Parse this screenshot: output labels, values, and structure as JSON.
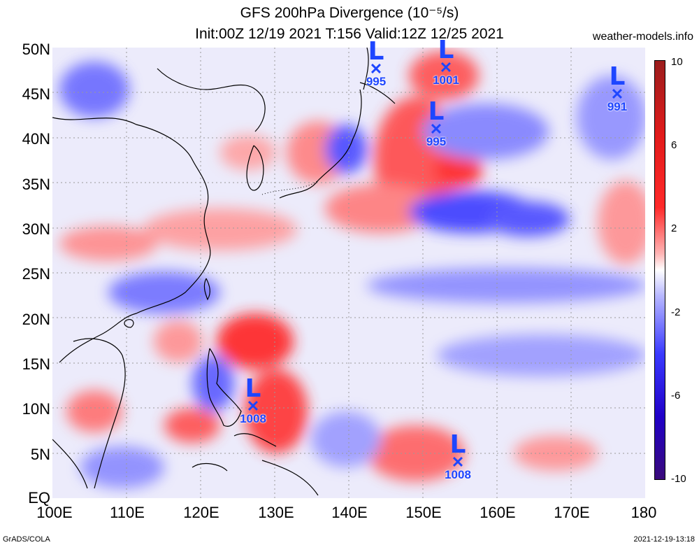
{
  "title": {
    "line1": "GFS 200hPa Divergence (10⁻⁵/s)",
    "line2": "Init:00Z 12/19 2021 T:156 Valid:12Z 12/25 2021"
  },
  "site": "weather-models.info",
  "footer": {
    "left": "GrADS/COLA",
    "right": "2021-12-19-13:18"
  },
  "axes": {
    "y_labels": [
      "50N",
      "45N",
      "40N",
      "35N",
      "30N",
      "25N",
      "20N",
      "15N",
      "10N",
      "5N",
      "EQ"
    ],
    "x_labels": [
      "100E",
      "110E",
      "120E",
      "130E",
      "140E",
      "150E",
      "160E",
      "170E",
      "180"
    ]
  },
  "colorbar": {
    "ticks": [
      "10",
      "6",
      "2",
      "-2",
      "-6",
      "-10"
    ],
    "colors": [
      "#9b1d1d",
      "#e21b1b",
      "#ff2a2a",
      "#ffb3b3",
      "#ffffff",
      "#b9b9ff",
      "#3a3aff",
      "#2000c8",
      "#3a0a7a"
    ]
  },
  "lows": [
    {
      "label": "L",
      "pressure": "995"
    },
    {
      "label": "L",
      "pressure": "1001"
    },
    {
      "label": "L",
      "pressure": "991"
    },
    {
      "label": "L",
      "pressure": "995"
    },
    {
      "label": "L",
      "pressure": "1008"
    },
    {
      "label": "L",
      "pressure": "1008"
    }
  ]
}
